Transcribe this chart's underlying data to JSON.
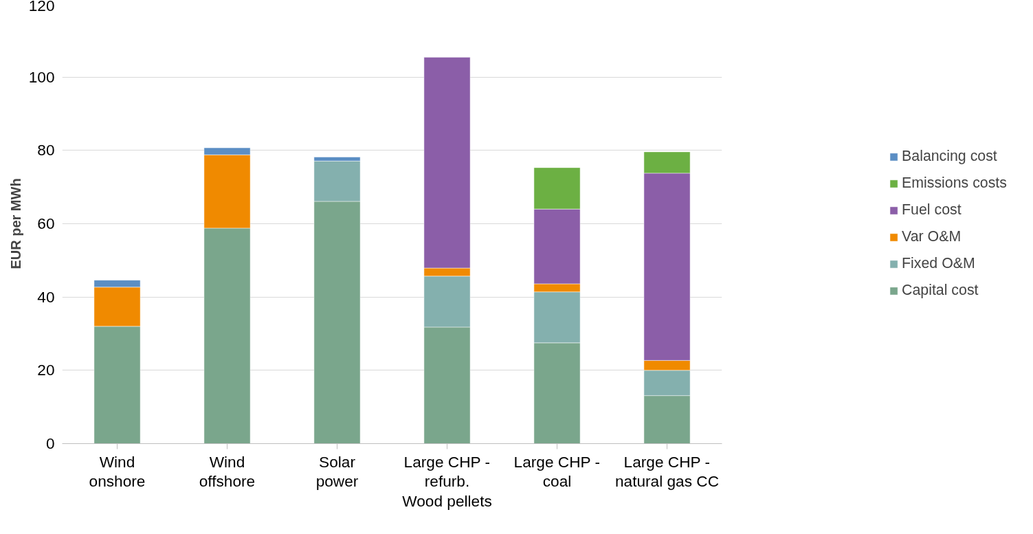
{
  "chart_data": {
    "type": "bar",
    "stacked": true,
    "ylabel": "EUR per MWh",
    "categories": [
      "Wind\nonshore",
      "Wind\noffshore",
      "Solar\npower",
      "Large CHP -\nrefurb.\nWood pellets",
      "Large CHP -\ncoal",
      "Large CHP -\nnatural gas CC"
    ],
    "series": [
      {
        "name": "Capital cost",
        "color": "#7aa68c",
        "values": [
          32,
          58.8,
          66.1,
          31.8,
          27.5,
          13.1
        ]
      },
      {
        "name": "Fixed O&M",
        "color": "#84b0ae",
        "values": [
          null,
          null,
          11,
          13.9,
          13.9,
          6.9
        ]
      },
      {
        "name": "Var O&M",
        "color": "#f08a00",
        "values": [
          10.7,
          20,
          null,
          2.2,
          2.2,
          2.7
        ]
      },
      {
        "name": "Fuel cost",
        "color": "#8b5ea8",
        "values": [
          null,
          null,
          null,
          57.5,
          20.4,
          51.1
        ]
      },
      {
        "name": "Emissions costs",
        "color": "#6cb043",
        "values": [
          null,
          null,
          null,
          null,
          11.3,
          5.8
        ]
      },
      {
        "name": "Balancing cost",
        "color": "#5b8ec4",
        "values": [
          1.9,
          1.9,
          1.1,
          null,
          null,
          null
        ]
      }
    ],
    "ylim": [
      0,
      120
    ],
    "yticks": [
      0,
      20,
      40,
      60,
      80,
      100,
      120
    ],
    "grid": "y",
    "legend": "right"
  }
}
